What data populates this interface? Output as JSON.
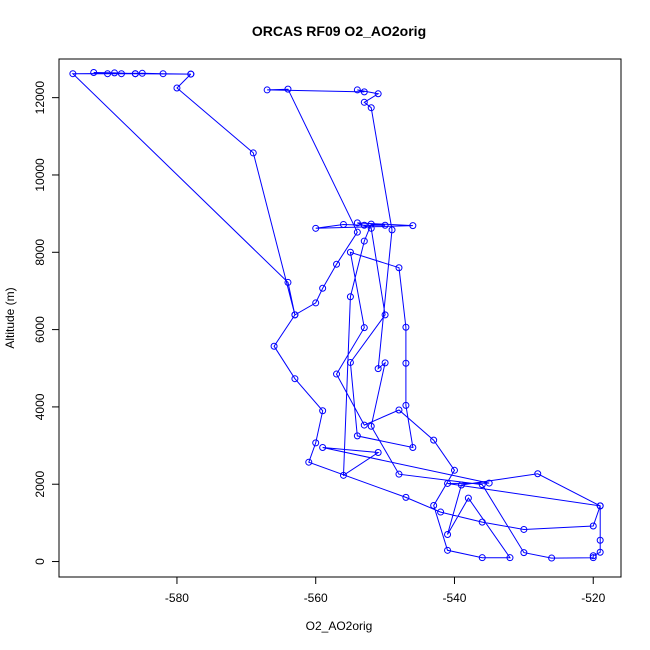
{
  "chart_data": {
    "type": "line",
    "title": "ORCAS RF09 O2_AO2orig",
    "xlabel": "O2_AO2orig",
    "ylabel": "Altitude (m)",
    "xlim": [
      -597,
      -516
    ],
    "ylim": [
      -400,
      13000
    ],
    "xticks": [
      -580,
      -560,
      -540,
      -520
    ],
    "yticks": [
      0,
      2000,
      4000,
      6000,
      8000,
      10000,
      12000
    ],
    "color": "#0000ff",
    "marker": "open-circle",
    "series": [
      {
        "points": [
          [
            -588,
            12620
          ],
          [
            -586,
            12620
          ],
          [
            -590,
            12620
          ],
          [
            -592,
            12650
          ],
          [
            -589,
            12640
          ],
          [
            -586,
            12620
          ],
          [
            -578,
            12610
          ],
          [
            -582,
            12620
          ],
          [
            -585,
            12630
          ],
          [
            -595,
            12620
          ],
          [
            -564,
            7220
          ],
          [
            -563,
            6380
          ],
          [
            -566,
            5570
          ],
          [
            -563,
            4730
          ],
          [
            -559,
            3900
          ],
          [
            -560,
            3070
          ],
          [
            -561,
            2570
          ],
          [
            -547,
            1660
          ],
          [
            -542,
            1280
          ],
          [
            -536,
            1020
          ],
          [
            -530,
            830
          ],
          [
            -520,
            920
          ],
          [
            -519,
            1440
          ],
          [
            -541,
            2020
          ],
          [
            -535,
            2030
          ],
          [
            -559,
            2950
          ],
          [
            -551,
            2820
          ],
          [
            -556,
            2230
          ],
          [
            -555,
            6850
          ],
          [
            -553,
            8290
          ],
          [
            -552,
            8730
          ],
          [
            -550,
            8700
          ],
          [
            -553,
            8700
          ],
          [
            -556,
            8720
          ],
          [
            -560,
            8620
          ],
          [
            -546,
            8690
          ],
          [
            -554,
            8760
          ],
          [
            -552,
            8620
          ],
          [
            -550,
            6380
          ],
          [
            -555,
            5150
          ],
          [
            -554,
            3250
          ],
          [
            -546,
            2950
          ],
          [
            -547,
            4040
          ],
          [
            -547,
            5130
          ],
          [
            -547,
            6060
          ],
          [
            -548,
            7600
          ],
          [
            -555,
            8000
          ],
          [
            -553,
            6050
          ],
          [
            -557,
            4850
          ],
          [
            -553,
            3530
          ],
          [
            -548,
            3920
          ],
          [
            -543,
            3140
          ],
          [
            -540,
            2360
          ],
          [
            -543,
            1450
          ],
          [
            -541,
            290
          ],
          [
            -536,
            100
          ],
          [
            -532,
            100
          ],
          [
            -538,
            1640
          ],
          [
            -541,
            700
          ],
          [
            -539,
            1980
          ],
          [
            -528,
            2270
          ],
          [
            -519,
            1440
          ],
          [
            -519,
            550
          ],
          [
            -519,
            240
          ],
          [
            -520,
            150
          ],
          [
            -520,
            100
          ],
          [
            -526,
            90
          ],
          [
            -530,
            230
          ],
          [
            -536,
            1990
          ],
          [
            -548,
            2260
          ],
          [
            -552,
            3500
          ],
          [
            -550,
            5140
          ],
          [
            -551,
            4990
          ],
          [
            -549,
            8580
          ],
          [
            -552,
            11740
          ],
          [
            -553,
            11880
          ],
          [
            -551,
            12100
          ],
          [
            -554,
            12200
          ],
          [
            -553,
            12150
          ],
          [
            -567,
            12200
          ],
          [
            -564,
            12220
          ],
          [
            -554,
            8520
          ],
          [
            -557,
            7690
          ],
          [
            -559,
            7070
          ],
          [
            -560,
            6690
          ],
          [
            -563,
            6380
          ],
          [
            -569,
            10570
          ],
          [
            -580,
            12250
          ],
          [
            -578,
            12610
          ]
        ]
      }
    ]
  }
}
